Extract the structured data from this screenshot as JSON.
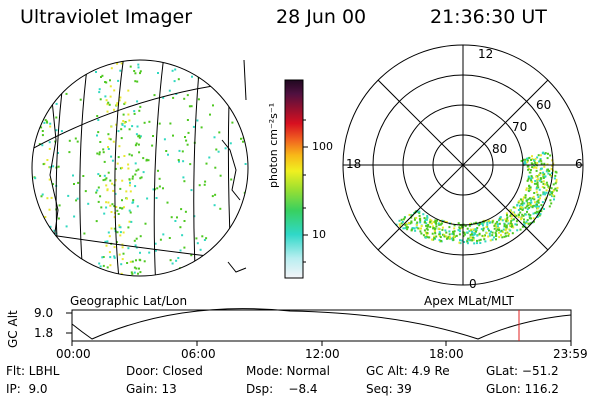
{
  "header": {
    "title": "Ultraviolet Imager",
    "date": "28 Jun 00",
    "time": "21:36:30 UT"
  },
  "colorbar": {
    "unit_label": "photon cm⁻²s⁻¹",
    "tick_100": "100",
    "tick_10": "10"
  },
  "polar_plot": {
    "mlt_12": "12",
    "mlt_18": "18",
    "mlt_6": "6",
    "mlt_0": "0",
    "lat_60": "60",
    "lat_70": "70",
    "lat_80": "80"
  },
  "projection_labels": {
    "left": "Geographic Lat/Lon",
    "right": "Apex MLat/MLT"
  },
  "altitude_plot": {
    "axis_label": "GC Alt",
    "y_max": "9.0",
    "y_min": "1.8",
    "x_ticks": [
      "00:00",
      "06:00",
      "12:00",
      "18:00",
      "23:59"
    ],
    "marker_color": "#e02020"
  },
  "footer": {
    "filter": "Flt: LBHL",
    "door": "Door: Closed",
    "mode": "Mode: Normal",
    "gc_alt": "GC Alt: 4.9 Re",
    "glat": "GLat: −51.2",
    "ip": "IP:  9.0",
    "gain": "Gain: 13",
    "dsp": "Dsp:    −8.4",
    "seq": "Seq: 39",
    "glon": "GLon: 116.2"
  },
  "colors": {
    "background": "#ffffff",
    "aurora_green": "#4ec820",
    "aurora_yellow": "#e8e830",
    "aurora_cyan": "#30d8c0"
  }
}
